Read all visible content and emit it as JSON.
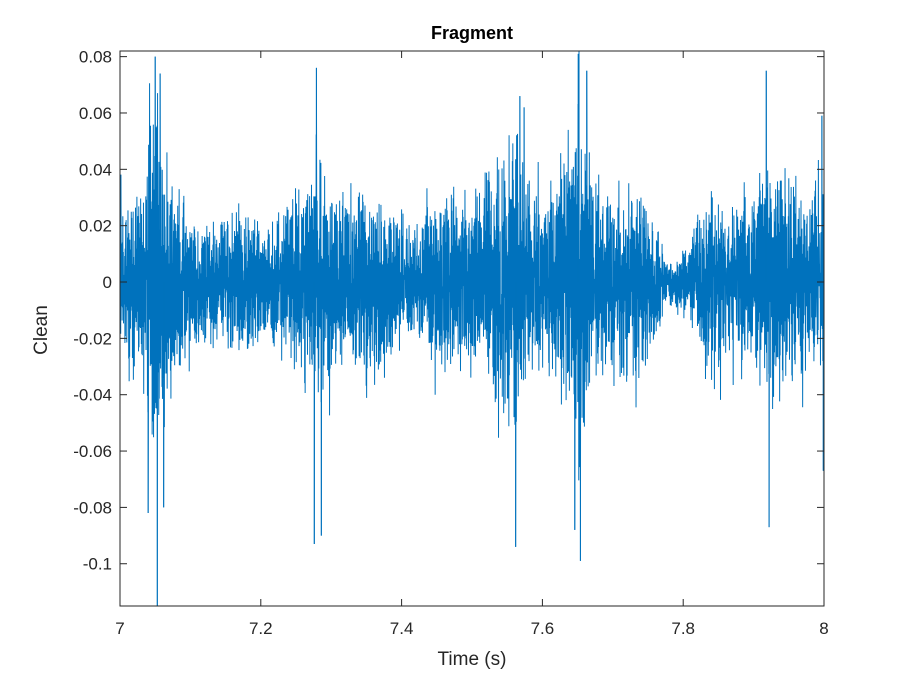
{
  "chart_data": {
    "type": "line",
    "title": "Fragment",
    "xlabel": "Time (s)",
    "ylabel": "Clean",
    "xlim": [
      7,
      8
    ],
    "ylim": [
      -0.115,
      0.082
    ],
    "x_ticks": [
      7,
      7.2,
      7.4,
      7.6,
      7.8,
      8
    ],
    "x_tick_labels": [
      "7",
      "7.2",
      "7.4",
      "7.6",
      "7.8",
      "8"
    ],
    "y_ticks": [
      0.08,
      0.06,
      0.04,
      0.02,
      0,
      -0.02,
      -0.04,
      -0.06,
      -0.08,
      -0.1
    ],
    "y_tick_labels": [
      "0.08",
      "0.06",
      "0.04",
      "0.02",
      "0",
      "-0.02",
      "-0.04",
      "-0.06",
      "-0.08",
      "-0.1"
    ],
    "grid": false,
    "legend": "none",
    "series": [
      {
        "color": "#0072BD",
        "envelope": {
          "t": [
            7.0,
            7.02,
            7.04,
            7.05,
            7.06,
            7.08,
            7.1,
            7.12,
            7.14,
            7.16,
            7.18,
            7.2,
            7.22,
            7.24,
            7.26,
            7.28,
            7.3,
            7.32,
            7.34,
            7.36,
            7.38,
            7.4,
            7.42,
            7.44,
            7.46,
            7.48,
            7.5,
            7.52,
            7.54,
            7.56,
            7.58,
            7.6,
            7.62,
            7.64,
            7.65,
            7.66,
            7.68,
            7.7,
            7.72,
            7.74,
            7.76,
            7.78,
            7.8,
            7.82,
            7.84,
            7.86,
            7.88,
            7.9,
            7.92,
            7.94,
            7.96,
            7.98,
            8.0
          ],
          "amp": [
            0.026,
            0.03,
            0.04,
            0.06,
            0.045,
            0.036,
            0.02,
            0.018,
            0.02,
            0.024,
            0.024,
            0.018,
            0.02,
            0.026,
            0.034,
            0.038,
            0.03,
            0.026,
            0.028,
            0.03,
            0.026,
            0.022,
            0.018,
            0.024,
            0.03,
            0.028,
            0.03,
            0.036,
            0.042,
            0.048,
            0.034,
            0.026,
            0.034,
            0.042,
            0.056,
            0.044,
            0.032,
            0.032,
            0.03,
            0.03,
            0.02,
            0.006,
            0.01,
            0.022,
            0.03,
            0.026,
            0.024,
            0.028,
            0.04,
            0.038,
            0.032,
            0.028,
            0.03
          ]
        },
        "peaks": [
          {
            "x": 7.05,
            "y": 0.08
          },
          {
            "x": 7.053,
            "y": -0.115
          },
          {
            "x": 7.057,
            "y": 0.074
          },
          {
            "x": 7.04,
            "y": -0.082
          },
          {
            "x": 7.062,
            "y": -0.08
          },
          {
            "x": 7.279,
            "y": 0.076
          },
          {
            "x": 7.276,
            "y": -0.093
          },
          {
            "x": 7.286,
            "y": -0.09
          },
          {
            "x": 7.562,
            "y": -0.094
          },
          {
            "x": 7.568,
            "y": 0.066
          },
          {
            "x": 7.574,
            "y": 0.062
          },
          {
            "x": 7.651,
            "y": 0.081
          },
          {
            "x": 7.654,
            "y": -0.099
          },
          {
            "x": 7.646,
            "y": -0.088
          },
          {
            "x": 7.663,
            "y": 0.075
          },
          {
            "x": 7.918,
            "y": 0.075
          },
          {
            "x": 7.922,
            "y": -0.087
          },
          {
            "x": 7.997,
            "y": 0.059
          },
          {
            "x": 7.999,
            "y": -0.067
          }
        ]
      }
    ]
  }
}
